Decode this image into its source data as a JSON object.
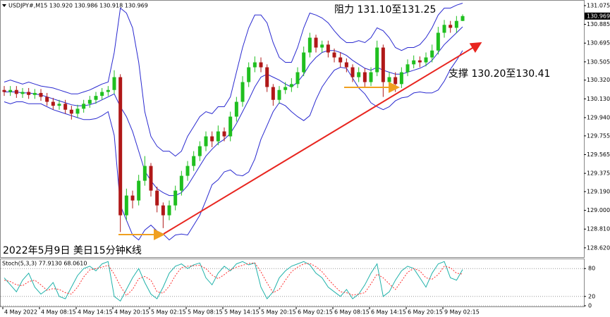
{
  "chart_data": [
    {
      "type": "candlestick",
      "title": "USDJPY#,M15  130.920 130.986 130.918 130.969",
      "annotations": [
        "阻力 131.10至131.25",
        "支撑 130.20至130.41",
        "2022年5月9日 美日15分钟K线"
      ],
      "categories": [
        "4 May 2022",
        null,
        null,
        null,
        null,
        null,
        "4 May 08:15",
        null,
        null,
        null,
        null,
        null,
        "4 May 14:15",
        null,
        null,
        null,
        null,
        null,
        "4 May 20:15",
        null,
        null,
        null,
        null,
        null,
        "5 May 02:15",
        null,
        null,
        null,
        null,
        null,
        "5 May 08:15",
        null,
        null,
        null,
        null,
        null,
        "5 May 14:15",
        null,
        null,
        null,
        null,
        null,
        "5 May 20:15",
        null,
        null,
        null,
        null,
        null,
        "6 May 02:15",
        null,
        null,
        null,
        null,
        null,
        "6 May 08:15",
        null,
        null,
        null,
        null,
        null,
        "6 May 14:15",
        null,
        null,
        null,
        null,
        null,
        "6 May 20:15",
        null,
        null,
        null,
        null,
        null,
        "9 May 02:15",
        null,
        null,
        null
      ],
      "open": [
        130.22,
        130.2,
        130.22,
        130.18,
        130.2,
        130.17,
        130.19,
        130.15,
        130.1,
        130.06,
        130.08,
        130.02,
        129.98,
        130.03,
        130.08,
        130.12,
        130.16,
        130.2,
        130.22,
        130.35,
        128.95,
        129.15,
        129.1,
        129.3,
        129.45,
        129.2,
        129.05,
        128.95,
        129.05,
        129.2,
        129.35,
        129.45,
        129.55,
        129.65,
        129.75,
        129.7,
        129.8,
        129.75,
        129.95,
        130.1,
        130.3,
        130.45,
        130.5,
        130.45,
        130.25,
        130.12,
        130.22,
        130.25,
        130.28,
        130.4,
        130.6,
        130.75,
        130.65,
        130.68,
        130.6,
        130.55,
        130.5,
        130.45,
        130.35,
        130.4,
        130.3,
        130.4,
        130.65,
        130.3,
        130.35,
        130.28,
        130.4,
        130.48,
        130.52,
        130.5,
        130.55,
        130.62,
        130.8,
        130.88,
        130.85,
        130.92
      ],
      "high": [
        130.26,
        130.26,
        130.26,
        130.24,
        130.24,
        130.23,
        130.23,
        130.19,
        130.14,
        130.12,
        130.12,
        130.06,
        130.07,
        130.12,
        130.16,
        130.2,
        130.24,
        130.26,
        130.42,
        130.38,
        129.22,
        129.2,
        129.36,
        129.55,
        129.48,
        129.24,
        129.08,
        129.1,
        129.25,
        129.4,
        129.5,
        129.6,
        129.7,
        129.8,
        129.8,
        129.86,
        129.84,
        130.0,
        130.15,
        130.36,
        130.5,
        130.56,
        130.55,
        130.48,
        130.28,
        130.26,
        130.3,
        130.34,
        130.45,
        130.66,
        130.8,
        130.78,
        130.72,
        130.72,
        130.64,
        130.6,
        130.54,
        130.48,
        130.45,
        130.44,
        130.45,
        130.72,
        130.68,
        130.4,
        130.4,
        130.45,
        130.53,
        130.57,
        130.56,
        130.6,
        130.68,
        130.86,
        130.93,
        130.92,
        130.97,
        130.986
      ],
      "low": [
        130.16,
        130.16,
        130.14,
        130.14,
        130.13,
        130.13,
        130.11,
        130.06,
        130.02,
        130.02,
        129.98,
        129.92,
        129.94,
        129.99,
        130.04,
        130.08,
        130.12,
        130.16,
        130.18,
        128.78,
        128.9,
        129.02,
        129.05,
        129.25,
        129.14,
        128.98,
        128.82,
        128.9,
        129.0,
        129.15,
        129.3,
        129.4,
        129.5,
        129.6,
        129.64,
        129.66,
        129.7,
        129.7,
        129.9,
        130.05,
        130.25,
        130.4,
        130.4,
        130.2,
        130.06,
        130.08,
        130.18,
        130.2,
        130.24,
        130.36,
        130.55,
        130.6,
        130.6,
        130.55,
        130.5,
        130.45,
        130.4,
        130.3,
        130.3,
        130.25,
        130.26,
        130.36,
        130.15,
        130.24,
        130.2,
        130.24,
        130.36,
        130.44,
        130.45,
        130.46,
        130.5,
        130.58,
        130.75,
        130.8,
        130.8,
        130.918
      ],
      "close": [
        130.2,
        130.22,
        130.18,
        130.2,
        130.17,
        130.19,
        130.15,
        130.1,
        130.06,
        130.08,
        130.02,
        129.98,
        130.03,
        130.08,
        130.12,
        130.16,
        130.2,
        130.22,
        130.35,
        128.95,
        129.15,
        129.1,
        129.3,
        129.45,
        129.2,
        129.05,
        128.95,
        129.05,
        129.2,
        129.35,
        129.45,
        129.55,
        129.65,
        129.75,
        129.7,
        129.8,
        129.75,
        129.95,
        130.1,
        130.3,
        130.45,
        130.5,
        130.45,
        130.25,
        130.12,
        130.22,
        130.25,
        130.28,
        130.4,
        130.6,
        130.75,
        130.65,
        130.68,
        130.6,
        130.55,
        130.5,
        130.45,
        130.35,
        130.4,
        130.3,
        130.4,
        130.65,
        130.3,
        130.35,
        130.28,
        130.4,
        130.48,
        130.52,
        130.5,
        130.55,
        130.62,
        130.8,
        130.88,
        130.85,
        130.92,
        130.969
      ],
      "upper_band": [
        130.3,
        130.32,
        130.3,
        130.28,
        130.3,
        130.28,
        130.26,
        130.25,
        130.24,
        130.22,
        130.2,
        130.18,
        130.18,
        130.2,
        130.22,
        130.25,
        130.28,
        130.3,
        130.6,
        131.05,
        131.0,
        130.85,
        130.5,
        130.0,
        129.75,
        129.65,
        129.6,
        129.6,
        129.55,
        129.6,
        129.75,
        129.85,
        129.95,
        130.0,
        129.98,
        130.05,
        130.05,
        130.15,
        130.4,
        130.65,
        130.85,
        130.98,
        130.98,
        130.9,
        130.7,
        130.55,
        130.5,
        130.5,
        130.65,
        130.85,
        131.0,
        130.98,
        130.95,
        130.9,
        130.82,
        130.75,
        130.7,
        130.7,
        130.72,
        130.7,
        130.75,
        130.85,
        130.82,
        130.75,
        130.65,
        130.62,
        130.65,
        130.65,
        130.68,
        130.75,
        130.85,
        130.98,
        131.05,
        131.05,
        131.08,
        131.1
      ],
      "middle_band": [
        130.2,
        130.2,
        130.2,
        130.19,
        130.19,
        130.18,
        130.17,
        130.15,
        130.13,
        130.11,
        130.09,
        130.07,
        130.06,
        130.06,
        130.07,
        130.09,
        130.12,
        130.15,
        130.18,
        130.05,
        129.95,
        129.8,
        129.6,
        129.4,
        129.3,
        129.22,
        129.18,
        129.15,
        129.15,
        129.18,
        129.25,
        129.35,
        129.45,
        129.55,
        129.62,
        129.68,
        129.72,
        129.78,
        129.88,
        130.0,
        130.12,
        130.25,
        130.35,
        130.38,
        130.35,
        130.32,
        130.28,
        130.25,
        130.3,
        130.38,
        130.48,
        130.55,
        130.6,
        130.62,
        130.62,
        130.6,
        130.57,
        130.52,
        130.48,
        130.44,
        130.42,
        130.45,
        130.42,
        130.4,
        130.38,
        130.38,
        130.4,
        130.42,
        130.44,
        130.47,
        130.52,
        130.6,
        130.68,
        130.74,
        130.8,
        130.86
      ],
      "lower_band": [
        130.1,
        130.08,
        130.1,
        130.1,
        130.08,
        130.08,
        130.08,
        130.05,
        130.02,
        130.0,
        129.98,
        129.96,
        129.94,
        129.92,
        129.92,
        129.93,
        129.96,
        130.0,
        129.76,
        129.05,
        128.9,
        128.75,
        128.7,
        128.8,
        128.85,
        128.79,
        128.76,
        128.7,
        128.75,
        128.76,
        128.75,
        128.85,
        128.95,
        129.1,
        129.26,
        129.31,
        129.39,
        129.41,
        129.36,
        129.35,
        129.39,
        129.52,
        129.72,
        129.86,
        130.0,
        130.09,
        130.06,
        130.0,
        129.95,
        129.91,
        129.96,
        130.12,
        130.25,
        130.34,
        130.42,
        130.45,
        130.44,
        130.34,
        130.24,
        130.18,
        130.09,
        130.05,
        130.02,
        130.05,
        130.11,
        130.14,
        130.15,
        130.19,
        130.2,
        130.19,
        130.19,
        130.22,
        130.31,
        130.43,
        130.52,
        130.62
      ],
      "up_color": "#1fbf1f",
      "down_color": "#b01818",
      "band_color": "#2a2ad0",
      "ylim": [
        128.526,
        131.132
      ],
      "yticks": [
        131.075,
        130.885,
        130.695,
        130.505,
        {
          "value": 130.32,
          "label": "130.320"
        },
        {
          "value": 130.13,
          "label": "130.130"
        },
        {
          "value": 129.94,
          "label": "129.940"
        },
        129.755,
        129.565,
        129.375,
        {
          "value": 129.19,
          "label": "129.190"
        },
        {
          "value": 129.0,
          "label": "129.000"
        },
        {
          "value": 128.81,
          "label": "128.810"
        },
        {
          "value": 128.62,
          "label": "128.620"
        }
      ]
    },
    {
      "type": "line",
      "title": "Stoch(5,3,3) 77.9130 68.0610",
      "main": [
        60,
        45,
        30,
        55,
        70,
        40,
        25,
        35,
        50,
        20,
        15,
        40,
        65,
        80,
        85,
        75,
        90,
        95,
        20,
        10,
        35,
        60,
        80,
        50,
        25,
        15,
        40,
        70,
        85,
        90,
        80,
        88,
        92,
        60,
        45,
        70,
        85,
        75,
        90,
        95,
        88,
        92,
        40,
        15,
        30,
        60,
        75,
        85,
        90,
        95,
        88,
        70,
        60,
        40,
        30,
        20,
        35,
        15,
        25,
        45,
        70,
        90,
        20,
        30,
        55,
        75,
        85,
        80,
        60,
        40,
        70,
        90,
        95,
        60,
        55,
        77.913
      ],
      "signal": [
        55,
        52,
        45,
        43,
        52,
        55,
        45,
        33,
        37,
        35,
        28,
        25,
        40,
        62,
        77,
        80,
        83,
        87,
        68,
        42,
        22,
        35,
        58,
        63,
        55,
        30,
        27,
        42,
        65,
        82,
        85,
        86,
        87,
        80,
        66,
        58,
        67,
        77,
        83,
        87,
        91,
        92,
        73,
        49,
        28,
        35,
        55,
        73,
        83,
        90,
        91,
        84,
        73,
        57,
        43,
        30,
        28,
        23,
        25,
        28,
        47,
        68,
        60,
        47,
        35,
        53,
        72,
        80,
        75,
        60,
        57,
        67,
        85,
        82,
        70,
        68.061
      ],
      "main_color": "#20b2aa",
      "signal_color": "#ff3030",
      "ylim": [
        0,
        100
      ],
      "yticks": [
        0,
        20,
        80
      ]
    }
  ]
}
